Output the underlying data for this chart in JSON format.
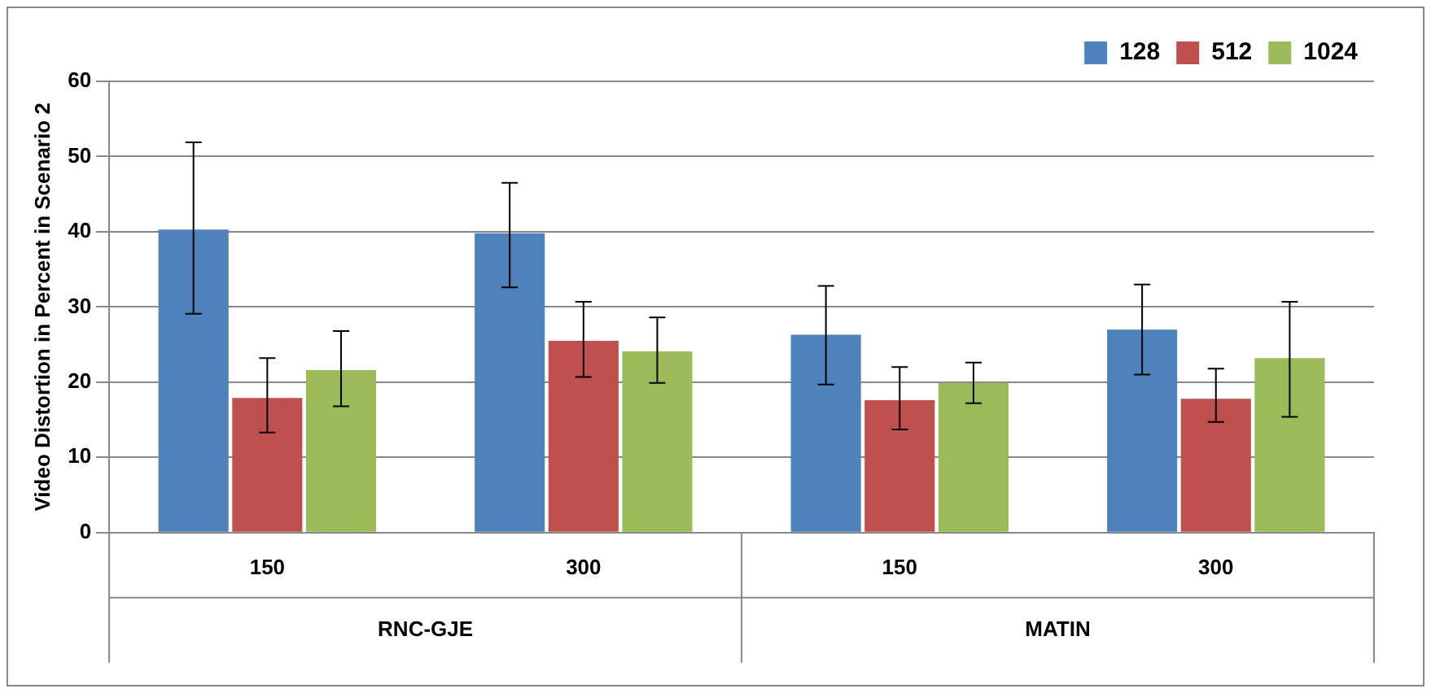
{
  "chart_data": {
    "type": "bar",
    "ylabel": "Video Distortion in Percent in Scenario 2",
    "categories": [
      "150",
      "300",
      "150",
      "300"
    ],
    "annotations": [
      "RNC-GJE",
      "MATIN"
    ],
    "series": [
      {
        "name": "128",
        "color": "#4f81bd",
        "values": [
          40.3,
          39.8,
          26.3,
          27.0
        ],
        "errors": [
          [
            29.1,
            51.9
          ],
          [
            32.6,
            46.5
          ],
          [
            19.7,
            32.8
          ],
          [
            21.0,
            33.0
          ]
        ]
      },
      {
        "name": "512",
        "color": "#c0504d",
        "values": [
          17.9,
          25.5,
          17.6,
          17.8
        ],
        "errors": [
          [
            13.3,
            23.2
          ],
          [
            20.7,
            30.7
          ],
          [
            13.7,
            22.0
          ],
          [
            14.7,
            21.8
          ]
        ]
      },
      {
        "name": "1024",
        "color": "#9bbb59",
        "values": [
          21.6,
          24.1,
          19.9,
          23.2
        ],
        "errors": [
          [
            16.8,
            26.8
          ],
          [
            19.9,
            28.6
          ],
          [
            17.2,
            22.6
          ],
          [
            15.4,
            30.7
          ]
        ]
      }
    ],
    "ylim": [
      0,
      60
    ],
    "yticks": [
      0,
      10,
      20,
      30,
      40,
      50,
      60
    ],
    "grid": "y",
    "legend": "top right"
  }
}
